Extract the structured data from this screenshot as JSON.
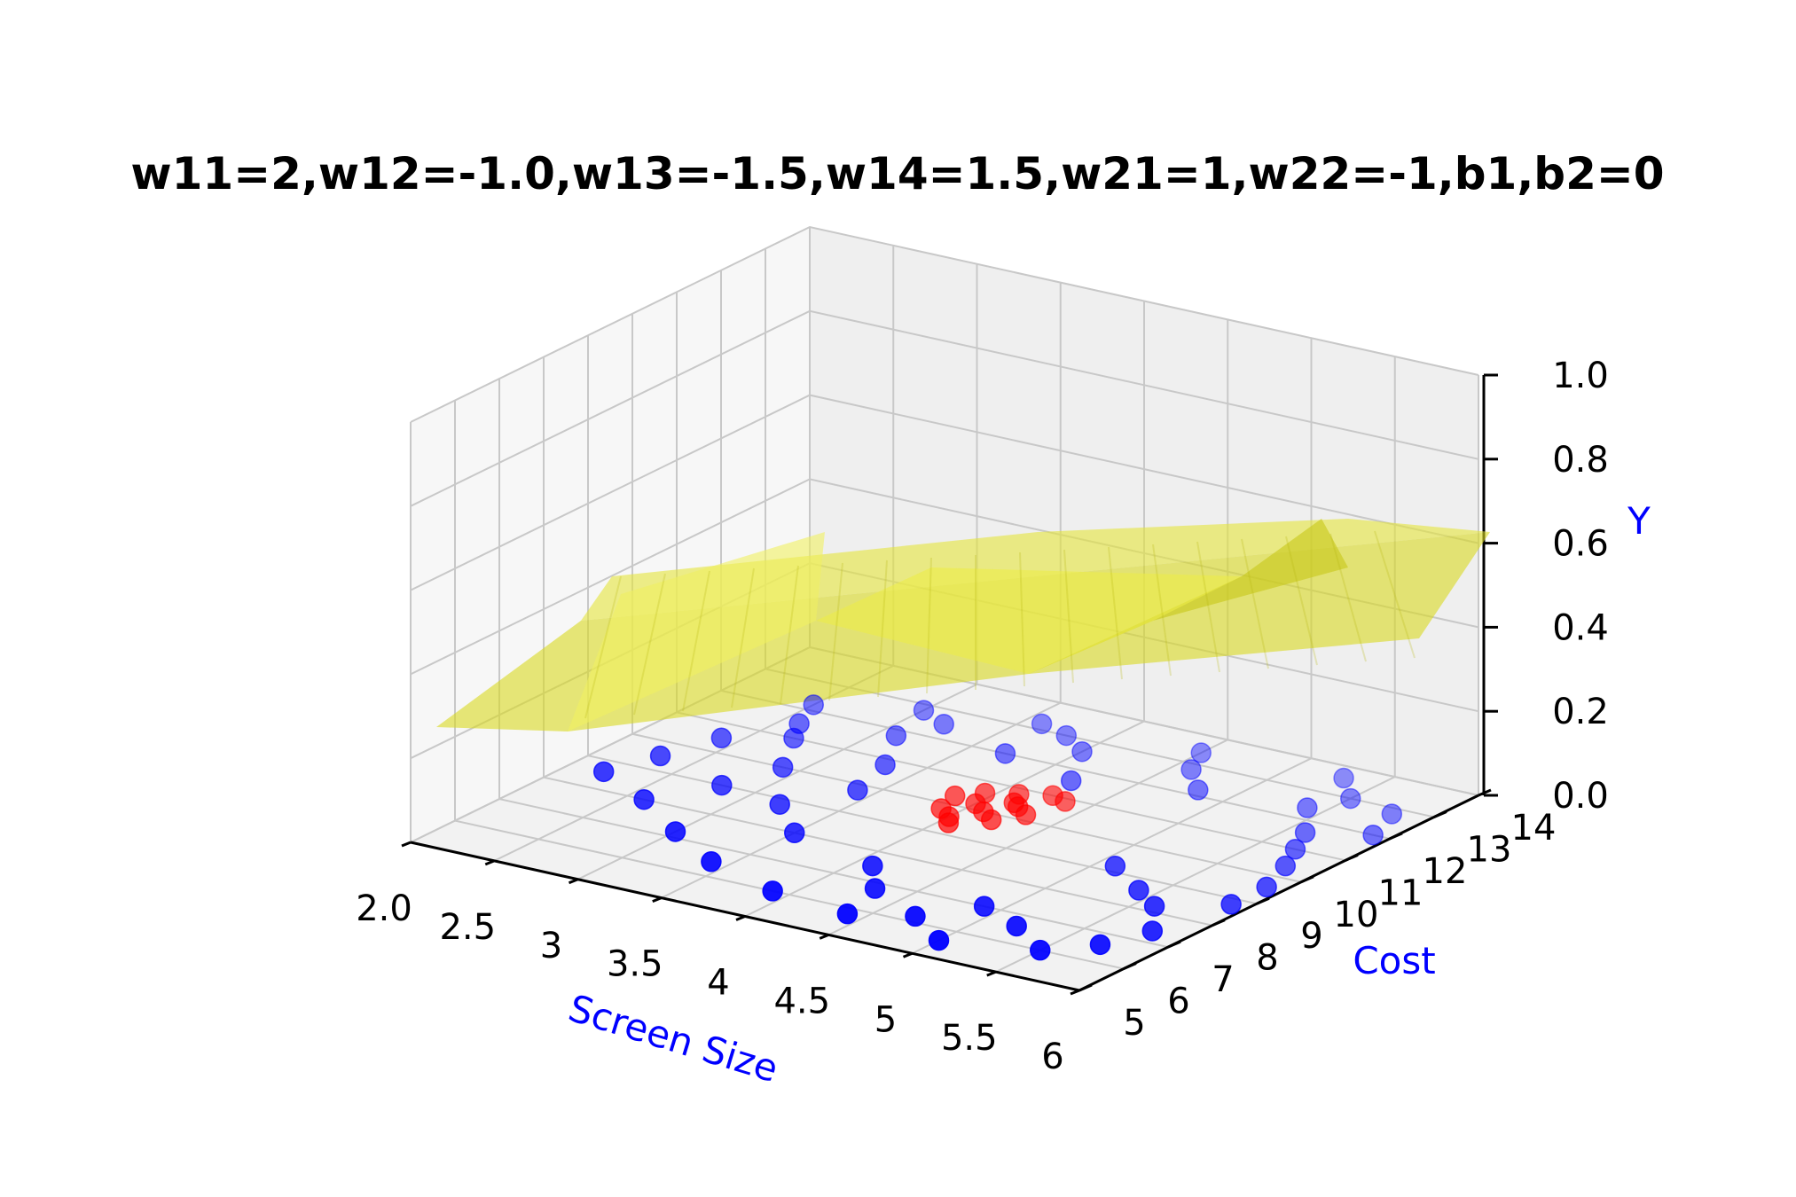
{
  "chart_data": {
    "type": "scatter",
    "projection": "3d",
    "title": "w11=2,w12=-1.0,w13=-1.5,w14=1.5,w21=1,w22=-1,b1,b2=0",
    "xlabel": "Screen Size",
    "ylabel": "Cost",
    "zlabel": "Y",
    "label_color": "#0000ff",
    "xlim": [
      2.0,
      6.0
    ],
    "ylim": [
      5,
      14
    ],
    "zlim": [
      0.0,
      1.0
    ],
    "x_ticks": [
      "2.0",
      "2.5",
      "3",
      "3.5",
      "4",
      "4.5",
      "5",
      "5.5",
      "6"
    ],
    "y_ticks": [
      "5",
      "6",
      "7",
      "8",
      "9",
      "10",
      "11",
      "12",
      "13",
      "14"
    ],
    "z_ticks": [
      "0.0",
      "0.2",
      "0.4",
      "0.6",
      "0.8",
      "1.0"
    ],
    "grid": true,
    "surface": {
      "color": "#e0e020",
      "opacity": 0.6,
      "description_values": "sigmoid output surface ranging roughly 0.1 to 0.5"
    },
    "series": [
      {
        "color": "#0000ff",
        "points": [
          [
            2.3,
            9.5,
            0
          ],
          [
            2.4,
            10.5,
            0
          ],
          [
            2.6,
            11.5,
            0
          ],
          [
            2.5,
            12.2,
            0
          ],
          [
            2.7,
            11.0,
            0
          ],
          [
            2.9,
            10.0,
            0
          ],
          [
            2.8,
            9.0,
            0
          ],
          [
            3.0,
            12.8,
            0
          ],
          [
            3.2,
            12.5,
            0
          ],
          [
            3.1,
            11.8,
            0
          ],
          [
            3.3,
            10.8,
            0
          ],
          [
            3.4,
            9.8,
            0
          ],
          [
            3.2,
            8.8,
            0
          ],
          [
            3.5,
            8.0,
            0
          ],
          [
            3.6,
            13.2,
            0
          ],
          [
            3.8,
            13.0,
            0
          ],
          [
            3.7,
            12.0,
            0
          ],
          [
            4.0,
            12.6,
            0
          ],
          [
            4.2,
            11.6,
            0
          ],
          [
            4.1,
            7.5,
            0
          ],
          [
            4.3,
            6.8,
            0
          ],
          [
            4.5,
            13.4,
            0
          ],
          [
            4.6,
            12.8,
            0
          ],
          [
            4.8,
            12.2,
            0
          ],
          [
            4.7,
            6.2,
            0
          ],
          [
            4.9,
            7.0,
            0
          ],
          [
            5.0,
            5.6,
            0
          ],
          [
            5.2,
            6.6,
            0
          ],
          [
            5.3,
            13.6,
            0
          ],
          [
            5.5,
            13.0,
            0
          ],
          [
            5.4,
            12.4,
            0
          ],
          [
            5.6,
            11.6,
            0
          ],
          [
            5.7,
            11.0,
            0
          ],
          [
            5.5,
            6.0,
            0
          ],
          [
            5.7,
            6.6,
            0
          ],
          [
            5.8,
            12.8,
            0
          ],
          [
            5.9,
            12.0,
            0
          ],
          [
            5.8,
            10.4,
            0
          ],
          [
            5.9,
            9.6,
            0
          ],
          [
            5.6,
            8.2,
            0
          ],
          [
            5.8,
            7.4,
            0
          ],
          [
            5.9,
            8.8,
            0
          ],
          [
            2.2,
            8.6,
            0
          ],
          [
            2.6,
            8.0,
            0
          ],
          [
            3.0,
            7.2,
            0
          ],
          [
            3.4,
            6.5,
            0
          ],
          [
            3.9,
            6.0,
            0
          ],
          [
            4.4,
            5.8,
            0
          ],
          [
            5.1,
            9.2,
            0
          ],
          [
            5.4,
            8.6,
            0
          ]
        ]
      },
      {
        "color": "#ff0000",
        "points": [
          [
            3.9,
            9.8,
            0
          ],
          [
            4.0,
            10.2,
            0
          ],
          [
            4.1,
            10.0,
            0
          ],
          [
            4.0,
            9.6,
            0
          ],
          [
            4.2,
            10.4,
            0
          ],
          [
            4.1,
            10.8,
            0
          ],
          [
            3.95,
            10.6,
            0
          ],
          [
            4.3,
            10.2,
            0
          ],
          [
            4.2,
            9.8,
            0
          ],
          [
            4.05,
            9.4,
            0
          ],
          [
            4.25,
            11.0,
            0
          ],
          [
            4.35,
            10.9,
            0
          ],
          [
            3.85,
            10.3,
            0
          ],
          [
            4.15,
            10.5,
            0
          ]
        ]
      }
    ]
  }
}
